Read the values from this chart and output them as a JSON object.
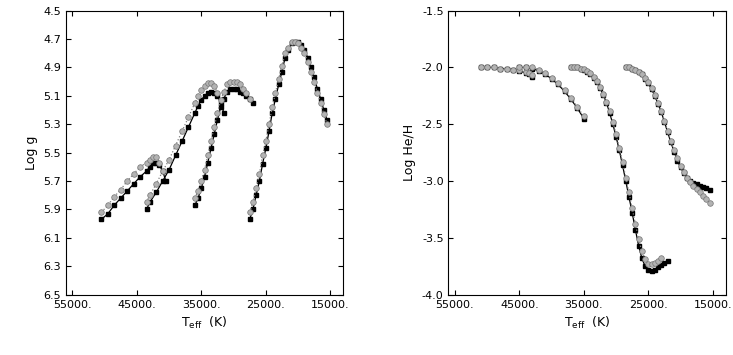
{
  "left_xlabel": "T$_{\\rm eff}$  (K)",
  "left_ylabel": "Log g",
  "right_xlabel": "T$_{\\rm eff}$  (K)",
  "right_ylabel": "Log He/H",
  "left_xlim": [
    56000,
    13000
  ],
  "left_ylim": [
    6.5,
    4.5
  ],
  "right_xlim": [
    56000,
    13000
  ],
  "right_ylim": [
    -4.0,
    -1.5
  ],
  "left_xticks": [
    55000,
    45000,
    35000,
    25000,
    15000
  ],
  "right_xticks": [
    55000,
    45000,
    35000,
    25000,
    15000
  ],
  "left_yticks": [
    4.5,
    4.7,
    4.9,
    5.1,
    5.3,
    5.5,
    5.7,
    5.9,
    6.1,
    6.3,
    6.5
  ],
  "right_yticks": [
    -1.5,
    -2.0,
    -2.5,
    -3.0,
    -3.5,
    -4.0
  ],
  "left_tracks_solid": [
    {
      "teff": [
        50500,
        49500,
        48500,
        47500,
        46500,
        45500,
        44500,
        43500,
        43000,
        42500,
        42000,
        41500,
        41000,
        40500
      ],
      "logg": [
        5.97,
        5.93,
        5.87,
        5.82,
        5.77,
        5.72,
        5.67,
        5.63,
        5.6,
        5.57,
        5.57,
        5.59,
        5.63,
        5.7
      ]
    },
    {
      "teff": [
        43500,
        43000,
        42000,
        41000,
        40000,
        39000,
        38000,
        37000,
        36000,
        35500,
        35000,
        34500,
        34000,
        33500,
        33000,
        32500,
        32000,
        31500
      ],
      "logg": [
        5.9,
        5.85,
        5.78,
        5.7,
        5.62,
        5.52,
        5.42,
        5.32,
        5.22,
        5.17,
        5.13,
        5.1,
        5.08,
        5.07,
        5.08,
        5.1,
        5.15,
        5.22
      ]
    },
    {
      "teff": [
        36000,
        35500,
        35000,
        34500,
        34000,
        33500,
        33000,
        32500,
        32000,
        31500,
        31000,
        30500,
        30000,
        29500,
        29000,
        28500,
        28000,
        27500,
        27000
      ],
      "logg": [
        5.87,
        5.82,
        5.75,
        5.67,
        5.57,
        5.47,
        5.37,
        5.27,
        5.18,
        5.12,
        5.07,
        5.05,
        5.05,
        5.05,
        5.07,
        5.08,
        5.1,
        5.12,
        5.15
      ]
    },
    {
      "teff": [
        27500,
        27000,
        26500,
        26000,
        25500,
        25000,
        24500,
        24000,
        23500,
        23000,
        22500,
        22000,
        21500,
        21000,
        20500,
        20000,
        19500,
        19000,
        18500,
        18000,
        17500,
        17000,
        16500,
        16000,
        15500
      ],
      "logg": [
        5.97,
        5.9,
        5.8,
        5.7,
        5.58,
        5.47,
        5.35,
        5.22,
        5.12,
        5.02,
        4.93,
        4.83,
        4.78,
        4.73,
        4.72,
        4.72,
        4.74,
        4.78,
        4.83,
        4.9,
        4.97,
        5.05,
        5.12,
        5.2,
        5.27
      ]
    }
  ],
  "left_tracks_dotted": [
    {
      "teff": [
        50500,
        49500,
        48500,
        47500,
        46500,
        45500,
        44500,
        43500,
        43000,
        42500,
        42000,
        41500
      ],
      "logg": [
        5.92,
        5.87,
        5.81,
        5.76,
        5.7,
        5.65,
        5.6,
        5.57,
        5.55,
        5.53,
        5.53,
        5.57
      ]
    },
    {
      "teff": [
        43500,
        43000,
        42000,
        41000,
        40000,
        39000,
        38000,
        37000,
        36000,
        35500,
        35000,
        34500,
        34000,
        33500,
        33000,
        32500
      ],
      "logg": [
        5.85,
        5.8,
        5.72,
        5.63,
        5.55,
        5.45,
        5.35,
        5.25,
        5.15,
        5.1,
        5.06,
        5.03,
        5.01,
        5.01,
        5.03,
        5.08
      ]
    },
    {
      "teff": [
        36000,
        35500,
        35000,
        34500,
        34000,
        33500,
        33000,
        32500,
        32000,
        31500,
        31000,
        30500,
        30000,
        29500,
        29000,
        28500,
        28000,
        27500
      ],
      "logg": [
        5.82,
        5.77,
        5.7,
        5.62,
        5.52,
        5.42,
        5.32,
        5.22,
        5.13,
        5.07,
        5.02,
        5.0,
        5.0,
        5.0,
        5.02,
        5.05,
        5.08,
        5.12
      ]
    },
    {
      "teff": [
        27500,
        27000,
        26500,
        26000,
        25500,
        25000,
        24500,
        24000,
        23500,
        23000,
        22500,
        22000,
        21500,
        21000,
        20500,
        20000,
        19500,
        19000,
        18500,
        18000,
        17500,
        17000,
        16500,
        16000,
        15500
      ],
      "logg": [
        5.92,
        5.85,
        5.75,
        5.65,
        5.52,
        5.42,
        5.3,
        5.18,
        5.08,
        4.98,
        4.89,
        4.8,
        4.76,
        4.72,
        4.72,
        4.73,
        4.76,
        4.8,
        4.86,
        4.93,
        5.0,
        5.08,
        5.15,
        5.23,
        5.3
      ]
    }
  ],
  "right_tracks_solid": [
    {
      "teff": [
        51000,
        50000,
        49000,
        48000,
        47000,
        46000,
        45000,
        44000,
        43500,
        43000
      ],
      "loghe": [
        -2.0,
        -2.0,
        -2.0,
        -2.01,
        -2.01,
        -2.02,
        -2.03,
        -2.05,
        -2.06,
        -2.08
      ]
    },
    {
      "teff": [
        45000,
        44000,
        43000,
        42000,
        41000,
        40000,
        39000,
        38000,
        37000,
        36000,
        35000
      ],
      "loghe": [
        -2.0,
        -2.0,
        -2.01,
        -2.03,
        -2.06,
        -2.1,
        -2.15,
        -2.21,
        -2.28,
        -2.36,
        -2.45
      ]
    },
    {
      "teff": [
        37000,
        36500,
        36000,
        35500,
        35000,
        34500,
        34000,
        33500,
        33000,
        32500,
        32000,
        31500,
        31000,
        30500,
        30000,
        29500,
        29000,
        28500,
        28000,
        27500,
        27000,
        26500,
        26000,
        25500,
        25000,
        24500,
        24000,
        23500,
        23000,
        22500,
        22000
      ],
      "loghe": [
        -2.0,
        -2.0,
        -2.0,
        -2.01,
        -2.02,
        -2.04,
        -2.06,
        -2.09,
        -2.13,
        -2.18,
        -2.24,
        -2.31,
        -2.4,
        -2.5,
        -2.61,
        -2.73,
        -2.86,
        -3.0,
        -3.14,
        -3.28,
        -3.43,
        -3.57,
        -3.68,
        -3.75,
        -3.78,
        -3.79,
        -3.78,
        -3.76,
        -3.74,
        -3.72,
        -3.7
      ]
    },
    {
      "teff": [
        28500,
        28000,
        27500,
        27000,
        26500,
        26000,
        25500,
        25000,
        24500,
        24000,
        23500,
        23000,
        22500,
        22000,
        21500,
        21000,
        20500,
        20000,
        19500,
        19000,
        18500,
        18000,
        17500,
        17000,
        16500,
        16000,
        15500
      ],
      "loghe": [
        -2.0,
        -2.0,
        -2.01,
        -2.02,
        -2.04,
        -2.06,
        -2.1,
        -2.14,
        -2.19,
        -2.25,
        -2.32,
        -2.39,
        -2.48,
        -2.57,
        -2.66,
        -2.74,
        -2.82,
        -2.88,
        -2.93,
        -2.97,
        -3.0,
        -3.02,
        -3.03,
        -3.04,
        -3.05,
        -3.06,
        -3.08
      ]
    }
  ],
  "right_tracks_dotted": [
    {
      "teff": [
        51000,
        50000,
        49000,
        48000,
        47000,
        46000,
        45000,
        44000,
        43500,
        43000
      ],
      "loghe": [
        -2.0,
        -2.0,
        -2.0,
        -2.01,
        -2.01,
        -2.02,
        -2.02,
        -2.04,
        -2.05,
        -2.07
      ]
    },
    {
      "teff": [
        45000,
        44000,
        43000,
        42000,
        41000,
        40000,
        39000,
        38000,
        37000,
        36000,
        35000
      ],
      "loghe": [
        -2.0,
        -2.0,
        -2.0,
        -2.02,
        -2.05,
        -2.09,
        -2.14,
        -2.2,
        -2.27,
        -2.35,
        -2.43
      ]
    },
    {
      "teff": [
        37000,
        36500,
        36000,
        35500,
        35000,
        34500,
        34000,
        33500,
        33000,
        32500,
        32000,
        31500,
        31000,
        30500,
        30000,
        29500,
        29000,
        28500,
        28000,
        27500,
        27000,
        26500,
        26000,
        25500,
        25000,
        24500,
        24000,
        23500,
        23000
      ],
      "loghe": [
        -2.0,
        -2.0,
        -2.0,
        -2.01,
        -2.01,
        -2.03,
        -2.05,
        -2.08,
        -2.12,
        -2.17,
        -2.23,
        -2.3,
        -2.38,
        -2.48,
        -2.59,
        -2.71,
        -2.83,
        -2.97,
        -3.1,
        -3.24,
        -3.38,
        -3.51,
        -3.62,
        -3.69,
        -3.73,
        -3.73,
        -3.72,
        -3.7,
        -3.68
      ]
    },
    {
      "teff": [
        28500,
        28000,
        27500,
        27000,
        26500,
        26000,
        25500,
        25000,
        24500,
        24000,
        23500,
        23000,
        22500,
        22000,
        21500,
        21000,
        20500,
        20000,
        19500,
        19000,
        18500,
        18000,
        17500,
        17000,
        16500,
        16000,
        15500
      ],
      "loghe": [
        -2.0,
        -2.0,
        -2.01,
        -2.02,
        -2.04,
        -2.06,
        -2.09,
        -2.13,
        -2.18,
        -2.24,
        -2.31,
        -2.38,
        -2.47,
        -2.56,
        -2.65,
        -2.73,
        -2.8,
        -2.87,
        -2.92,
        -2.97,
        -3.01,
        -3.04,
        -3.07,
        -3.1,
        -3.13,
        -3.16,
        -3.19
      ]
    }
  ]
}
